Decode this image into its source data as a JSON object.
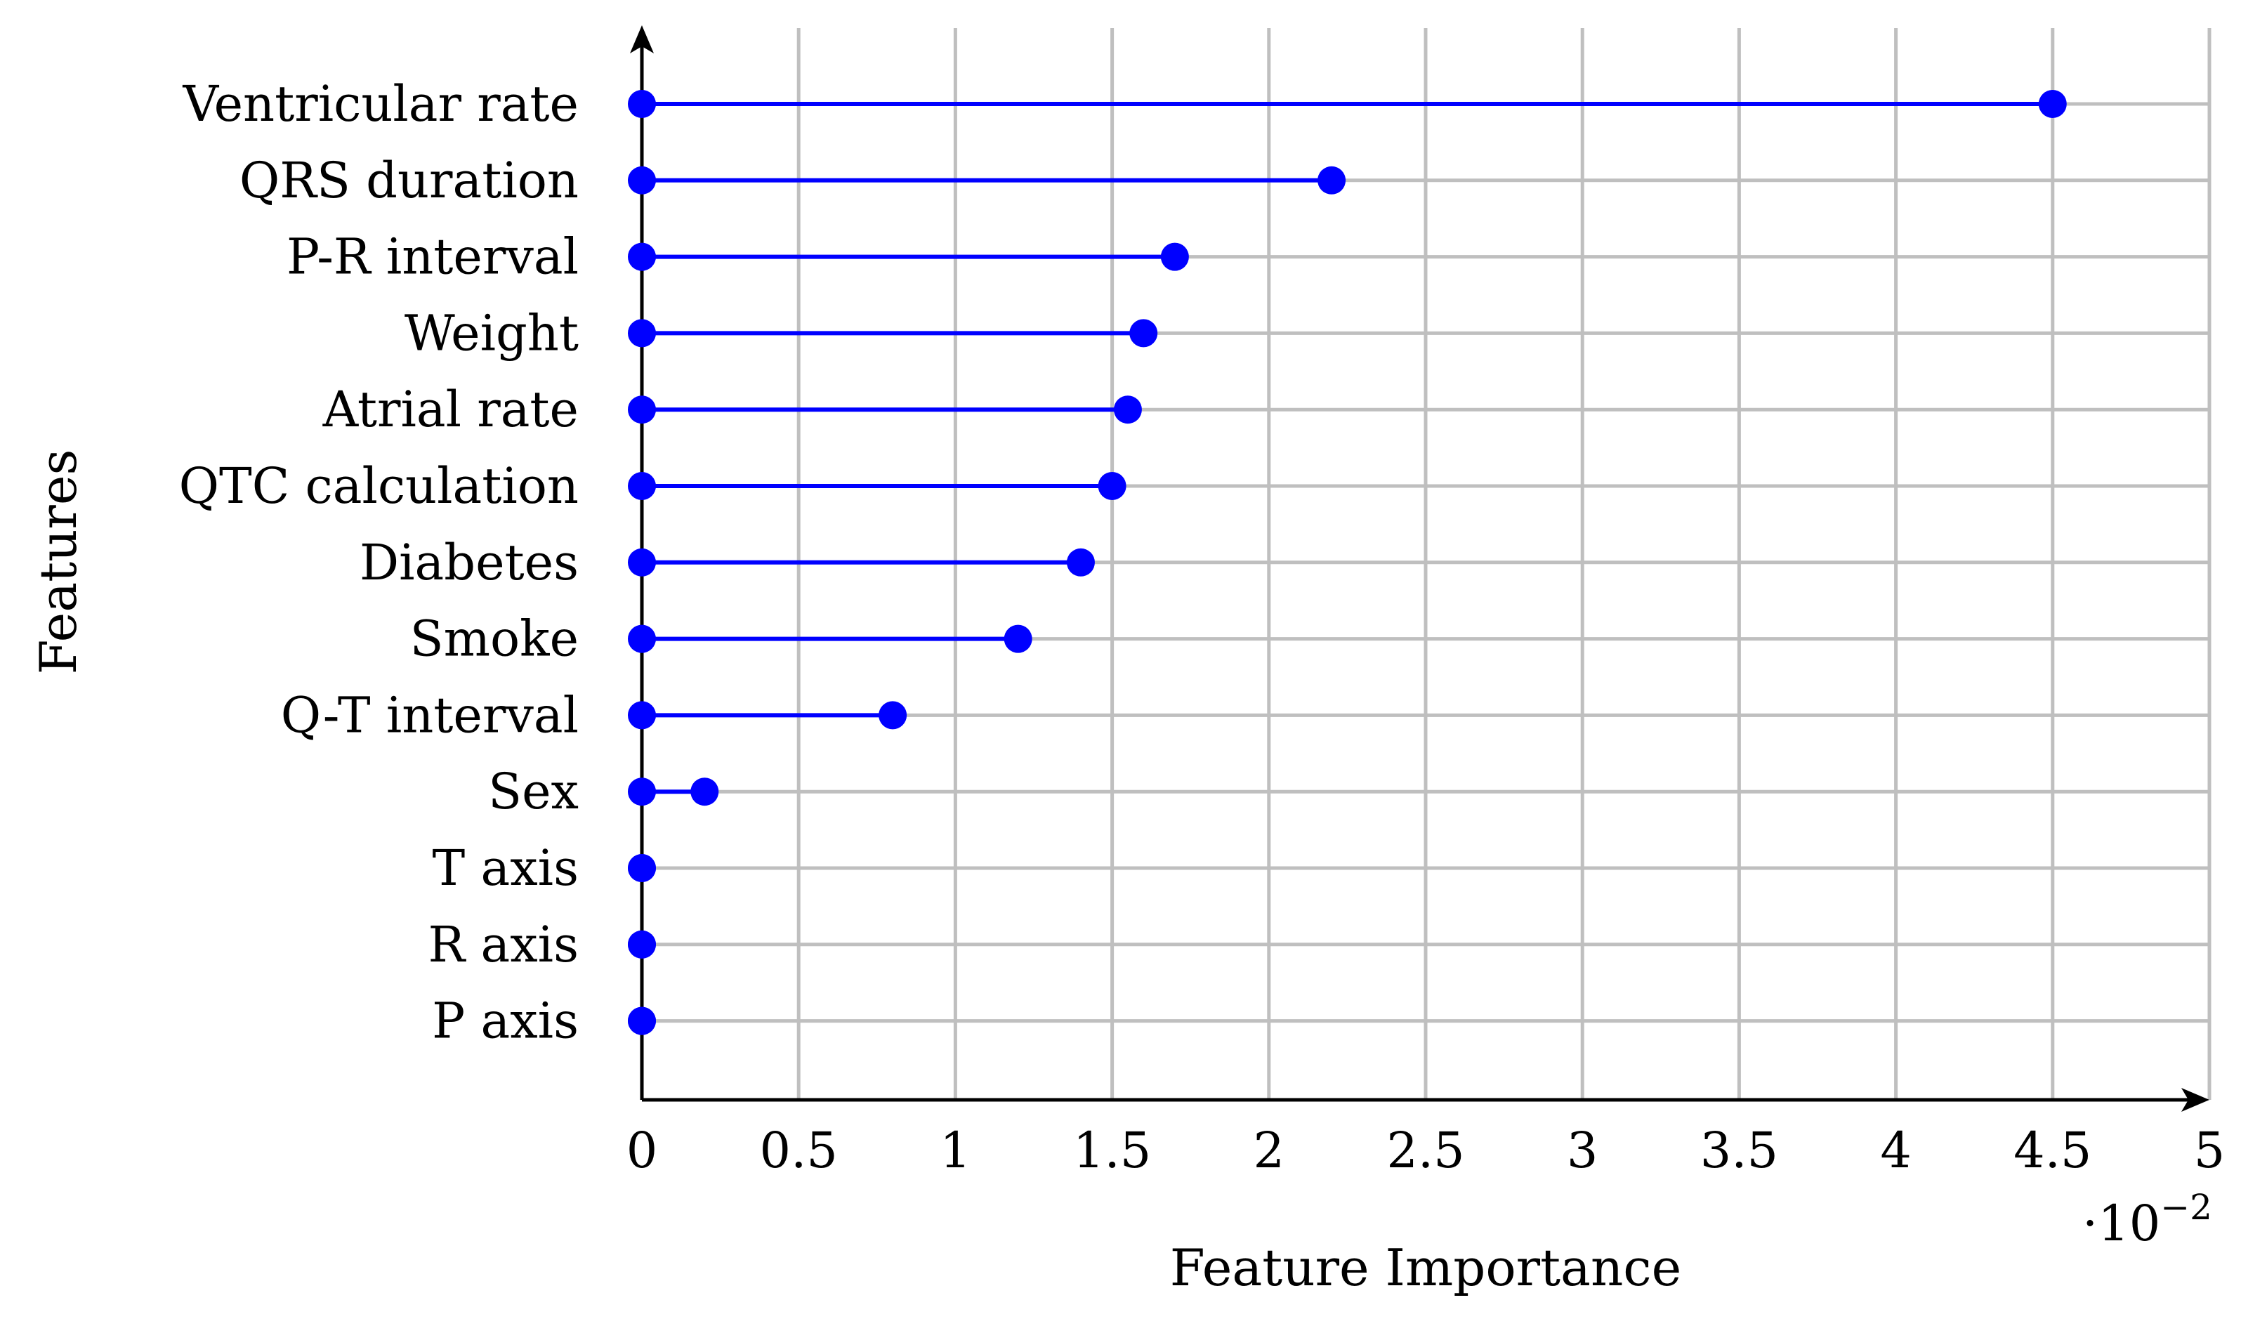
{
  "chart_data": {
    "type": "lollipop",
    "xlabel": "Feature Importance",
    "ylabel": "Features",
    "x_multiplier_label": {
      "prefix": "·10",
      "exponent": "−2"
    },
    "xlim": [
      0,
      5
    ],
    "x_ticks": [
      "0",
      "0.5",
      "1",
      "1.5",
      "2",
      "2.5",
      "3",
      "3.5",
      "4",
      "4.5",
      "5"
    ],
    "grid": true,
    "marker_color": "#0000ff",
    "grid_color": "#bfbfbf",
    "categories": [
      "Ventricular rate",
      "QRS duration",
      "P-R interval",
      "Weight",
      "Atrial rate",
      "QTC calculation",
      "Diabetes",
      "Smoke",
      "Q-T interval",
      "Sex",
      "T axis",
      "R axis",
      "P axis"
    ],
    "values": [
      4.5,
      2.2,
      1.7,
      1.6,
      1.55,
      1.5,
      1.4,
      1.2,
      0.8,
      0.2,
      0,
      0,
      0
    ]
  }
}
